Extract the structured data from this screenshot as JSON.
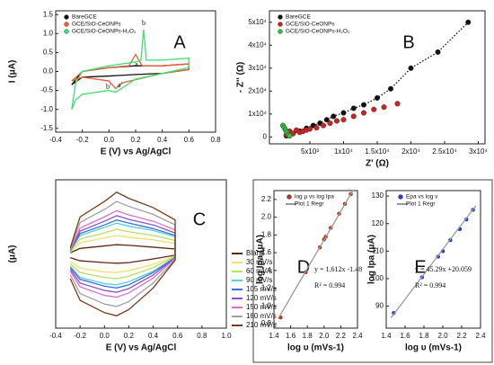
{
  "chart_data": [
    {
      "type": "line",
      "label": "A",
      "xlabel": "E (V) vs Ag/AgCl",
      "ylabel": "I (μA)",
      "xlim": [
        -0.4,
        0.8
      ],
      "ylim": [
        -1.6,
        1.6
      ],
      "xticks": [
        -0.4,
        -0.2,
        {
          "value": 0,
          "label": "0.0"
        },
        0.2,
        0.4,
        0.6,
        0.8
      ],
      "yticks": [
        -1.5,
        {
          "value": -1,
          "label": "-1.0"
        },
        -0.5,
        {
          "value": 0,
          "label": "0.0"
        },
        0.5,
        {
          "value": 1,
          "label": "1.0"
        },
        1.5
      ],
      "legend": "upper left",
      "annotations": [
        "a",
        "b",
        "b'",
        "a'"
      ],
      "series": [
        {
          "name": "BareGCE",
          "color": "#111111",
          "x": [
            -0.28,
            -0.2,
            0,
            0.2,
            0.4,
            0.6,
            0.6,
            0.4,
            0.2,
            0,
            -0.2,
            -0.28
          ],
          "values": [
            -0.35,
            0.0,
            0.1,
            0.15,
            0.15,
            0.2,
            0.05,
            -0.05,
            -0.08,
            -0.12,
            -0.15,
            -0.35
          ]
        },
        {
          "name": "GCE/SiO-CeONPs",
          "color": "#e8613a",
          "x": [
            -0.28,
            -0.2,
            0,
            0.15,
            0.2,
            0.25,
            0.4,
            0.6,
            0.6,
            0.4,
            0.1,
            0.05,
            0,
            -0.2,
            -0.28
          ],
          "values": [
            -0.25,
            0.0,
            0.1,
            0.15,
            0.45,
            0.15,
            0.15,
            0.2,
            0.05,
            -0.05,
            -0.3,
            -0.45,
            -0.25,
            -0.15,
            -0.25
          ]
        },
        {
          "name": "GCE/SiO-CeONPs-H₂O₂",
          "color": "#3ee070",
          "x": [
            -0.28,
            -0.25,
            -0.2,
            0,
            0.2,
            0.24,
            0.26,
            0.28,
            0.4,
            0.6,
            0.6,
            0.4,
            0.2,
            0.05,
            0,
            -0.2,
            -0.25,
            -0.28
          ],
          "values": [
            -1.0,
            -0.3,
            0.0,
            0.15,
            0.25,
            0.3,
            1.1,
            0.3,
            0.3,
            0.35,
            0.1,
            -0.05,
            -0.2,
            -0.55,
            -0.5,
            -0.6,
            -0.75,
            -1.0
          ]
        }
      ]
    },
    {
      "type": "scatter",
      "label": "B",
      "xlabel": "Z' (Ω)",
      "ylabel": "- Z'' (Ω)",
      "xlim": [
        -1000,
        31000
      ],
      "ylim": [
        -3000,
        55000
      ],
      "xticks": [
        {
          "value": 5000,
          "label": "5x10³"
        },
        {
          "value": 10000,
          "label": "1x10⁴"
        },
        {
          "value": 15000,
          "label": "1.5x10⁴"
        },
        {
          "value": 20000,
          "label": "2x10⁴"
        },
        {
          "value": 25000,
          "label": "2.5x10⁴"
        },
        {
          "value": 30000,
          "label": "3x10⁴"
        }
      ],
      "yticks": [
        0,
        {
          "value": 10000,
          "label": "1x10⁴"
        },
        {
          "value": 20000,
          "label": "2x10⁴"
        },
        {
          "value": 30000,
          "label": "3x10⁴"
        },
        {
          "value": 40000,
          "label": "4x10⁴"
        },
        {
          "value": 50000,
          "label": "5x10⁴"
        }
      ],
      "legend": "upper left",
      "series": [
        {
          "name": "BareGCE",
          "color": "#111111",
          "line_style": "dotted",
          "x": [
            1500,
            2500,
            3500,
            4500,
            5500,
            6500,
            7500,
            8500,
            10000,
            11500,
            13000,
            15000,
            17000,
            20000,
            24000,
            28500
          ],
          "values": [
            500,
            1500,
            2500,
            3800,
            5000,
            6000,
            7500,
            9000,
            10500,
            12500,
            14000,
            17000,
            21000,
            30000,
            37000,
            50000
          ]
        },
        {
          "name": "GCE/SiO-CeONPs",
          "color": "#d42020",
          "x": [
            1500,
            2000,
            2500,
            3000,
            3500,
            4000,
            4500,
            5000,
            6000,
            7000,
            8000,
            9000,
            10000,
            11500,
            13000,
            14500,
            16000,
            18000
          ],
          "values": [
            1000,
            2500,
            1500,
            3000,
            2000,
            2500,
            3000,
            3500,
            4000,
            5000,
            6000,
            7000,
            7500,
            9000,
            10500,
            12000,
            13000,
            14500
          ]
        },
        {
          "name": "GCE/SiO-CeONPs-H₂O₂",
          "color": "#2fc040",
          "x": [
            1000,
            1200,
            1400,
            1600,
            1800,
            2000
          ],
          "values": [
            5000,
            4000,
            3000,
            2000,
            1000,
            500
          ]
        }
      ]
    },
    {
      "type": "line",
      "label": "C",
      "xlabel": "E (V) vs Ag/AgCl",
      "ylabel": "(μA)",
      "xlim": [
        -0.4,
        1.0
      ],
      "ylim": [
        -1.2,
        1.2
      ],
      "xticks": [
        -0.4,
        -0.2,
        {
          "value": 0,
          "label": "0.0"
        },
        0.2,
        0.4,
        0.6,
        0.8,
        {
          "value": 1,
          "label": "1.0"
        }
      ],
      "legend": "right",
      "x": [
        -0.28,
        -0.2,
        0,
        0.1,
        0.2,
        0.4,
        0.58,
        0.58,
        0.4,
        0.2,
        0.1,
        0,
        -0.2,
        -0.28
      ],
      "series": [
        {
          "name": "Blank",
          "color": "#5a2a10",
          "values": [
            0.02,
            0.09,
            0.13,
            0.15,
            0.14,
            0.11,
            0.08,
            -0.02,
            -0.08,
            -0.14,
            -0.15,
            -0.14,
            -0.11,
            -0.06
          ]
        },
        {
          "name": "30 mV/s",
          "color": "#f0e070",
          "values": [
            0.03,
            0.18,
            0.26,
            0.3,
            0.27,
            0.23,
            0.17,
            -0.03,
            -0.17,
            -0.27,
            -0.3,
            -0.29,
            -0.23,
            -0.12
          ]
        },
        {
          "name": "60 mV/s",
          "color": "#b8e060",
          "values": [
            0.04,
            0.24,
            0.34,
            0.4,
            0.36,
            0.3,
            0.22,
            -0.04,
            -0.22,
            -0.36,
            -0.4,
            -0.38,
            -0.3,
            -0.16
          ]
        },
        {
          "name": "90 mV/s",
          "color": "#50d0e0",
          "values": [
            0.05,
            0.3,
            0.43,
            0.5,
            0.45,
            0.38,
            0.28,
            -0.05,
            -0.28,
            -0.45,
            -0.5,
            -0.48,
            -0.38,
            -0.2
          ]
        },
        {
          "name": "105 mV/s",
          "color": "#3a70d0",
          "values": [
            0.06,
            0.33,
            0.47,
            0.55,
            0.5,
            0.41,
            0.3,
            -0.06,
            -0.3,
            -0.5,
            -0.55,
            -0.52,
            -0.41,
            -0.22
          ]
        },
        {
          "name": "120 mV/s",
          "color": "#8a50d0",
          "values": [
            0.06,
            0.37,
            0.53,
            0.62,
            0.56,
            0.47,
            0.34,
            -0.06,
            -0.34,
            -0.56,
            -0.62,
            -0.59,
            -0.47,
            -0.25
          ]
        },
        {
          "name": "150 mV/s",
          "color": "#e070c0",
          "values": [
            0.07,
            0.42,
            0.6,
            0.7,
            0.63,
            0.53,
            0.39,
            -0.07,
            -0.39,
            -0.63,
            -0.7,
            -0.67,
            -0.53,
            -0.28
          ]
        },
        {
          "name": "180 mV/s",
          "color": "#a0a0a0",
          "values": [
            0.09,
            0.51,
            0.72,
            0.85,
            0.77,
            0.64,
            0.47,
            -0.09,
            -0.47,
            -0.77,
            -0.85,
            -0.81,
            -0.64,
            -0.34
          ]
        },
        {
          "name": "210 mV/s",
          "color": "#7a3b1a",
          "values": [
            0.1,
            0.6,
            0.85,
            1.0,
            0.9,
            0.75,
            0.55,
            -0.1,
            -0.55,
            -0.9,
            -1.0,
            -0.95,
            -0.75,
            -0.4
          ]
        }
      ]
    },
    {
      "type": "scatter",
      "label": "D",
      "xlabel": "log υ (mVs-1)",
      "ylabel": "log Ipa (μA)",
      "xlim": [
        1.4,
        2.4
      ],
      "ylim": [
        0.75,
        2.3
      ],
      "xticks": [
        1.4,
        1.6,
        1.8,
        {
          "value": 2,
          "label": "2.0"
        },
        2.2,
        2.4
      ],
      "yticks": [
        0.8,
        {
          "value": 1,
          "label": "1.0"
        },
        1.2,
        1.4,
        1.6,
        1.8,
        {
          "value": 2,
          "label": "2.0"
        },
        2.2
      ],
      "legend": "upper left",
      "annotations": [
        "y = 1.612x -1.48",
        "R² = 0.994"
      ],
      "series": [
        {
          "name": "log μ vs log Ipa",
          "color": "#b03a20",
          "x": [
            1.48,
            1.78,
            1.95,
            2.0,
            2.02,
            2.08,
            2.18,
            2.25,
            2.32
          ],
          "values": [
            0.87,
            1.38,
            1.66,
            1.75,
            1.78,
            1.88,
            2.04,
            2.15,
            2.26
          ]
        },
        {
          "name": "Plot 1 Regr",
          "color": "#999999",
          "mode": "line",
          "x": [
            1.45,
            2.35
          ],
          "values": [
            0.857,
            2.308
          ]
        }
      ]
    },
    {
      "type": "scatter",
      "label": "E",
      "xlabel": "log υ (mVs-1)",
      "ylabel": "log Ipa (μA)",
      "xlim": [
        1.4,
        2.4
      ],
      "ylim": [
        82,
        132
      ],
      "xticks": [
        1.4,
        1.6,
        1.8,
        {
          "value": 2,
          "label": "2.0"
        },
        2.2,
        2.4
      ],
      "yticks": [
        90,
        100,
        110,
        120,
        130
      ],
      "legend": "upper left",
      "annotations": [
        "y = 45.29x +20.059",
        "R² = 0.994"
      ],
      "series": [
        {
          "name": "Epa vs log ν",
          "color": "#2040d0",
          "x": [
            1.48,
            1.78,
            1.95,
            2.0,
            2.08,
            2.18,
            2.25,
            2.32
          ],
          "values": [
            87.5,
            100.5,
            108,
            110,
            114,
            118,
            121.5,
            125
          ]
        },
        {
          "name": "Plot 1 Regr",
          "color": "#999999",
          "mode": "line",
          "x": [
            1.45,
            2.35
          ],
          "values": [
            85.73,
            126.5
          ]
        }
      ]
    }
  ]
}
